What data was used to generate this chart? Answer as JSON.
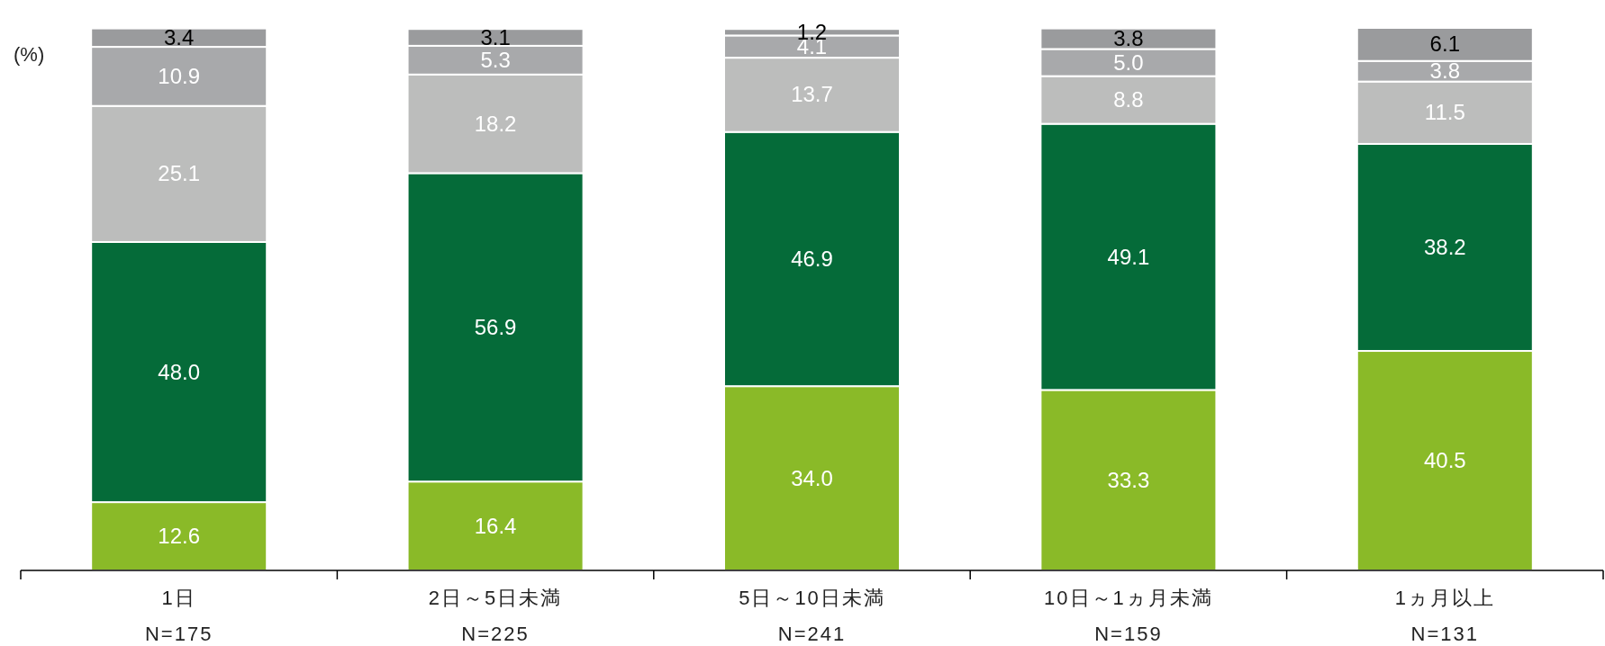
{
  "chart_data": {
    "type": "bar",
    "stacked": true,
    "ylabel": "(%)",
    "categories": [
      "1日\nN=175",
      "2日～5日未満\nN=225",
      "5日～10日未満\nN=241",
      "10日～1ヵ月未満\nN=159",
      "1ヵ月以上\nN=131"
    ],
    "series": [
      {
        "color": "#8aba28",
        "values": [
          12.6,
          16.4,
          34.0,
          33.3,
          40.5
        ],
        "value_labels": [
          "12.6",
          "16.4",
          "34.0",
          "33.3",
          "40.5"
        ]
      },
      {
        "color": "#056b39",
        "values": [
          48.0,
          56.9,
          46.9,
          49.1,
          38.2
        ],
        "value_labels": [
          "48.0",
          "56.9",
          "46.9",
          "49.1",
          "38.2"
        ]
      },
      {
        "color": "#bcbdbc",
        "values": [
          25.1,
          18.2,
          13.7,
          8.8,
          11.5
        ],
        "value_labels": [
          "25.1",
          "18.2",
          "13.7",
          "8.8",
          "11.5"
        ]
      },
      {
        "color": "#a8a9ab",
        "values": [
          10.9,
          5.3,
          4.1,
          5.0,
          3.8
        ],
        "value_labels": [
          "10.9",
          "5.3",
          "4.1",
          "5.0",
          "3.8"
        ]
      },
      {
        "color": "#9a9b9d",
        "values": [
          3.4,
          3.1,
          1.2,
          3.8,
          6.1
        ],
        "value_labels": [
          "3.4",
          "3.1",
          "1.2",
          "3.8",
          "6.1"
        ]
      }
    ]
  }
}
